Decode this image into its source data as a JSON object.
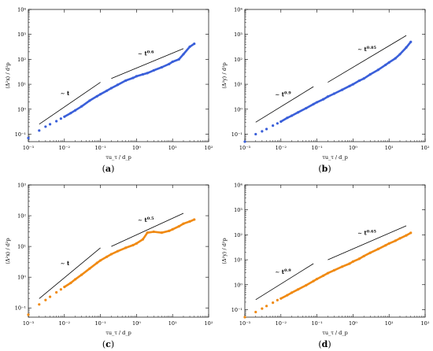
{
  "chart_data": [
    {
      "type": "scatter",
      "caption_letter": "a",
      "xlabel": "τu_τ / d_p",
      "ylabel": "⟨Δ²x⟩ / d²p",
      "xscale": "log",
      "yscale": "log",
      "xlim": [
        0.001,
        100
      ],
      "ylim": [
        0.05,
        10000
      ],
      "xticks": [
        "10⁻³",
        "10⁻²",
        "10⁻¹",
        "10⁰",
        "10¹",
        "10²"
      ],
      "yticks": [
        "10⁻¹",
        "10⁰",
        "10¹",
        "10²",
        "10³",
        "10⁴"
      ],
      "color": "#3a5fd9",
      "series": {
        "x": [
          0.001,
          0.002,
          0.003,
          0.004,
          0.006,
          0.008,
          0.01,
          0.015,
          0.02,
          0.03,
          0.05,
          0.08,
          0.1,
          0.15,
          0.2,
          0.3,
          0.5,
          0.8,
          1,
          1.5,
          2,
          3,
          5,
          8,
          10,
          15,
          20,
          30,
          40
        ],
        "y": [
          0.07,
          0.14,
          0.2,
          0.25,
          0.33,
          0.42,
          0.5,
          0.7,
          0.9,
          1.3,
          2.2,
          3.3,
          4,
          5.5,
          7,
          9.5,
          14,
          18,
          21,
          25,
          28,
          36,
          48,
          65,
          80,
          100,
          160,
          320,
          420
        ]
      },
      "guides": [
        {
          "label": "∼ t",
          "exp": "",
          "x": [
            0.002,
            0.1
          ],
          "y": [
            0.25,
            12
          ]
        },
        {
          "label": "∼ t",
          "exp": "0.6",
          "x": [
            0.2,
            20
          ],
          "y": [
            17,
            270
          ]
        }
      ]
    },
    {
      "type": "scatter",
      "caption_letter": "b",
      "xlabel": "τu_τ / d_p",
      "ylabel": "⟨Δ²y⟩ / d²p",
      "xscale": "log",
      "yscale": "log",
      "xlim": [
        0.001,
        100
      ],
      "ylim": [
        0.05,
        10000
      ],
      "xticks": [
        "10⁻³",
        "10⁻²",
        "10⁻¹",
        "10⁰",
        "10¹",
        "10²"
      ],
      "yticks": [
        "10⁻¹",
        "10⁰",
        "10¹",
        "10²",
        "10³",
        "10⁴"
      ],
      "color": "#3a5fd9",
      "series": {
        "x": [
          0.001,
          0.002,
          0.003,
          0.004,
          0.006,
          0.008,
          0.01,
          0.015,
          0.02,
          0.03,
          0.05,
          0.08,
          0.1,
          0.15,
          0.2,
          0.3,
          0.5,
          0.8,
          1,
          1.5,
          2,
          3,
          5,
          8,
          10,
          15,
          20,
          30,
          40
        ],
        "y": [
          0.05,
          0.1,
          0.13,
          0.16,
          0.22,
          0.27,
          0.32,
          0.45,
          0.55,
          0.75,
          1.1,
          1.6,
          1.9,
          2.5,
          3.2,
          4.2,
          6,
          8.5,
          10,
          14,
          17,
          25,
          38,
          60,
          75,
          110,
          160,
          300,
          500
        ]
      },
      "guides": [
        {
          "label": "∼ t",
          "exp": "0.9",
          "x": [
            0.002,
            0.08
          ],
          "y": [
            0.3,
            8
          ]
        },
        {
          "label": "∼ t",
          "exp": "0.85",
          "x": [
            0.2,
            30
          ],
          "y": [
            12,
            900
          ]
        }
      ]
    },
    {
      "type": "scatter",
      "caption_letter": "c",
      "xlabel": "τu_τ / d_p",
      "ylabel": "⟨Δ²x⟩ / d²p",
      "xscale": "log",
      "yscale": "log",
      "xlim": [
        0.001,
        100
      ],
      "ylim": [
        0.05,
        1000
      ],
      "xticks": [
        "10⁻³",
        "10⁻²",
        "10⁻¹",
        "10⁰",
        "10¹",
        "10²"
      ],
      "yticks": [
        "10⁻¹",
        "10⁰",
        "10¹",
        "10²",
        "10³"
      ],
      "color": "#f08a13",
      "series": {
        "x": [
          0.001,
          0.002,
          0.003,
          0.004,
          0.006,
          0.008,
          0.01,
          0.015,
          0.02,
          0.03,
          0.05,
          0.08,
          0.1,
          0.15,
          0.2,
          0.3,
          0.5,
          0.8,
          1,
          1.5,
          2,
          3,
          5,
          8,
          10,
          15,
          20,
          30,
          40
        ],
        "y": [
          0.06,
          0.13,
          0.18,
          0.23,
          0.32,
          0.4,
          0.48,
          0.65,
          0.85,
          1.2,
          1.9,
          2.9,
          3.5,
          4.6,
          5.6,
          7,
          9,
          11,
          12.5,
          17,
          28,
          30,
          28,
          32,
          36,
          45,
          55,
          65,
          75
        ]
      },
      "guides": [
        {
          "label": "∼ t",
          "exp": "",
          "x": [
            0.002,
            0.1
          ],
          "y": [
            0.2,
            9
          ]
        },
        {
          "label": "∼ t",
          "exp": "0.5",
          "x": [
            0.2,
            20
          ],
          "y": [
            10,
            120
          ]
        }
      ]
    },
    {
      "type": "scatter",
      "caption_letter": "d",
      "xlabel": "τu_τ / d_p",
      "ylabel": "⟨Δ²y⟩ / d²p",
      "xscale": "log",
      "yscale": "log",
      "xlim": [
        0.001,
        100
      ],
      "ylim": [
        0.05,
        10000
      ],
      "xticks": [
        "10⁻³",
        "10⁻²",
        "10⁻¹",
        "10⁰",
        "10¹",
        "10²"
      ],
      "yticks": [
        "10⁻¹",
        "10⁰",
        "10¹",
        "10²",
        "10³",
        "10⁴"
      ],
      "color": "#f08a13",
      "series": {
        "x": [
          0.001,
          0.002,
          0.003,
          0.004,
          0.006,
          0.008,
          0.01,
          0.015,
          0.02,
          0.03,
          0.05,
          0.08,
          0.1,
          0.15,
          0.2,
          0.3,
          0.5,
          0.8,
          1,
          1.5,
          2,
          3,
          5,
          8,
          10,
          15,
          20,
          30,
          40
        ],
        "y": [
          0.05,
          0.08,
          0.11,
          0.14,
          0.19,
          0.24,
          0.28,
          0.38,
          0.48,
          0.65,
          0.95,
          1.4,
          1.7,
          2.3,
          2.9,
          3.8,
          5.3,
          7,
          8.5,
          11,
          14,
          19,
          27,
          38,
          45,
          58,
          72,
          95,
          120
        ]
      },
      "guides": [
        {
          "label": "∼ t",
          "exp": "0.9",
          "x": [
            0.002,
            0.08
          ],
          "y": [
            0.25,
            7
          ]
        },
        {
          "label": "∼ t",
          "exp": "0.65",
          "x": [
            0.2,
            30
          ],
          "y": [
            10,
            230
          ]
        }
      ]
    }
  ]
}
